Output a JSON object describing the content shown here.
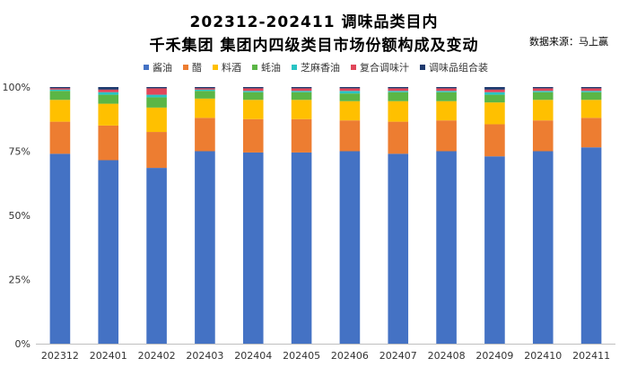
{
  "title_line1": "202312-202411 调味品类目内",
  "title_line2": "千禾集团 集团内四级类目市场份额构成及变动",
  "source": "数据来源：马上赢",
  "chart_data": {
    "type": "bar",
    "stacked": true,
    "categories": [
      "202312",
      "202401",
      "202402",
      "202403",
      "202404",
      "202405",
      "202406",
      "202407",
      "202408",
      "202409",
      "202410",
      "202411"
    ],
    "series": [
      {
        "name": "酱油",
        "color": "#4472C4",
        "values": [
          74.0,
          71.5,
          68.5,
          75.0,
          74.5,
          74.5,
          75.0,
          74.0,
          75.0,
          73.0,
          75.0,
          76.5
        ]
      },
      {
        "name": "醋",
        "color": "#ED7D31",
        "values": [
          12.5,
          13.5,
          14.0,
          13.0,
          13.0,
          13.0,
          12.0,
          12.5,
          12.0,
          12.5,
          12.0,
          11.5
        ]
      },
      {
        "name": "料酒",
        "color": "#FFC000",
        "values": [
          8.5,
          8.5,
          9.5,
          7.5,
          7.5,
          7.5,
          7.5,
          8.0,
          7.5,
          8.5,
          8.0,
          7.0
        ]
      },
      {
        "name": "蚝油",
        "color": "#5BB646",
        "values": [
          3.5,
          3.5,
          4.0,
          3.0,
          3.0,
          3.0,
          3.0,
          3.5,
          3.5,
          3.0,
          3.0,
          3.0
        ]
      },
      {
        "name": "芝麻香油",
        "color": "#29C4C4",
        "values": [
          0.5,
          1.0,
          1.0,
          0.5,
          0.5,
          0.5,
          1.0,
          0.5,
          0.5,
          1.0,
          0.5,
          0.5
        ]
      },
      {
        "name": "复合调味汁",
        "color": "#E0475A",
        "values": [
          0.5,
          1.0,
          2.5,
          0.5,
          1.0,
          1.0,
          1.0,
          1.0,
          1.0,
          1.0,
          1.0,
          1.0
        ]
      },
      {
        "name": "调味品组合装",
        "color": "#1F3A6E",
        "values": [
          0.5,
          1.0,
          0.5,
          0.5,
          0.5,
          0.5,
          0.5,
          0.5,
          0.5,
          1.0,
          0.5,
          0.5
        ]
      }
    ],
    "yticks": [
      "0%",
      "25%",
      "50%",
      "75%",
      "100%"
    ],
    "ylim": [
      0,
      100
    ],
    "legend_position": "top-center",
    "grid": false
  }
}
